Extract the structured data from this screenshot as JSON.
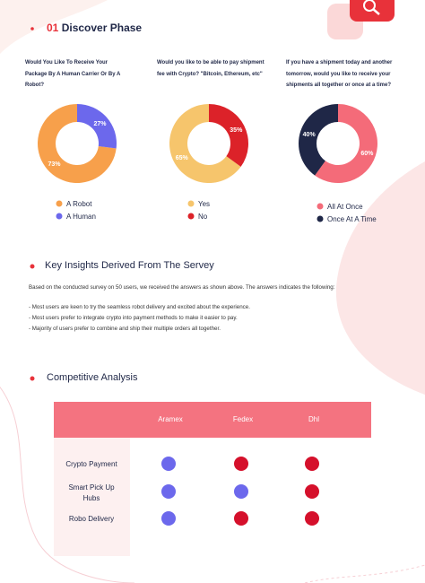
{
  "header": {
    "number": "01",
    "title": "Discover Phase"
  },
  "chart_data": [
    {
      "type": "pie",
      "title": "Would You Like To Receive Your Package By A Human Carrier Or By A Robot?",
      "categories": [
        "A Robot",
        "A Human"
      ],
      "values": [
        73,
        27
      ],
      "value_labels": [
        "73%",
        "27%"
      ],
      "colors": [
        "#f7a04b",
        "#6c68ec"
      ],
      "direction": "counterclockwise"
    },
    {
      "type": "pie",
      "title": "Would you like to be able to pay shipment fee with Crypto? \"Bitcoin, Ethereum, etc\"",
      "categories": [
        "Yes",
        "No"
      ],
      "values": [
        65,
        35
      ],
      "value_labels": [
        "65%",
        "35%"
      ],
      "colors": [
        "#f6c56c",
        "#dc2229"
      ],
      "direction": "counterclockwise"
    },
    {
      "type": "pie",
      "title": "If you have a shipment today and another tomorrow, would you like to receive your shipments all together or once at a time?",
      "categories": [
        "All At Once",
        "Once At A Time"
      ],
      "values": [
        60,
        40
      ],
      "value_labels": [
        "60%",
        "40%"
      ],
      "colors": [
        "#f46b79",
        "#1f2747"
      ],
      "direction": "clockwise"
    }
  ],
  "insights": {
    "heading": "Key Insights Derived From The Servey",
    "intro": "Based on the conducted survey on 50 users, we received the answers as shown above. The answers indicates the following:",
    "bullets": [
      "- Most users are keen to try the seamless robot delivery and excited about the experience.",
      "- Most users prefer to integrate crypto into payment methods to make it easier to pay.",
      "- Majority of users prefer to combine and ship their multiple orders all together."
    ]
  },
  "competitive": {
    "heading": "Competitive Analysis",
    "columns": [
      "Aramex",
      "Fedex",
      "Dhl"
    ],
    "rows": [
      {
        "label": "Crypto Payment",
        "cells": [
          "#6c68ec",
          "#d5102b",
          "#d5102b"
        ]
      },
      {
        "label": "Smart Pick Up Hubs",
        "cells": [
          "#6c68ec",
          "#6c68ec",
          "#d5102b"
        ]
      },
      {
        "label": "Robo Delivery",
        "cells": [
          "#6c68ec",
          "#d5102b",
          "#d5102b"
        ]
      }
    ]
  }
}
